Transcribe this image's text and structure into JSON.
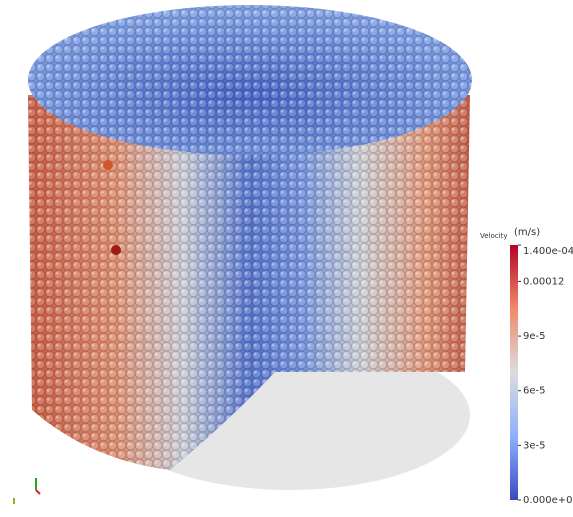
{
  "colorbar": {
    "title": "Velocity",
    "unit": "(m/s)",
    "range": [
      0,
      0.00014
    ],
    "ticks": [
      {
        "value": 0.00014,
        "label": "1.400e-04"
      },
      {
        "value": 0.00012,
        "label": "0.00012"
      },
      {
        "value": 9e-05,
        "label": "9e-5"
      },
      {
        "value": 6e-05,
        "label": "6e-5"
      },
      {
        "value": 3e-05,
        "label": "3e-5"
      },
      {
        "value": 0,
        "label": "0.000e+00"
      }
    ]
  }
}
